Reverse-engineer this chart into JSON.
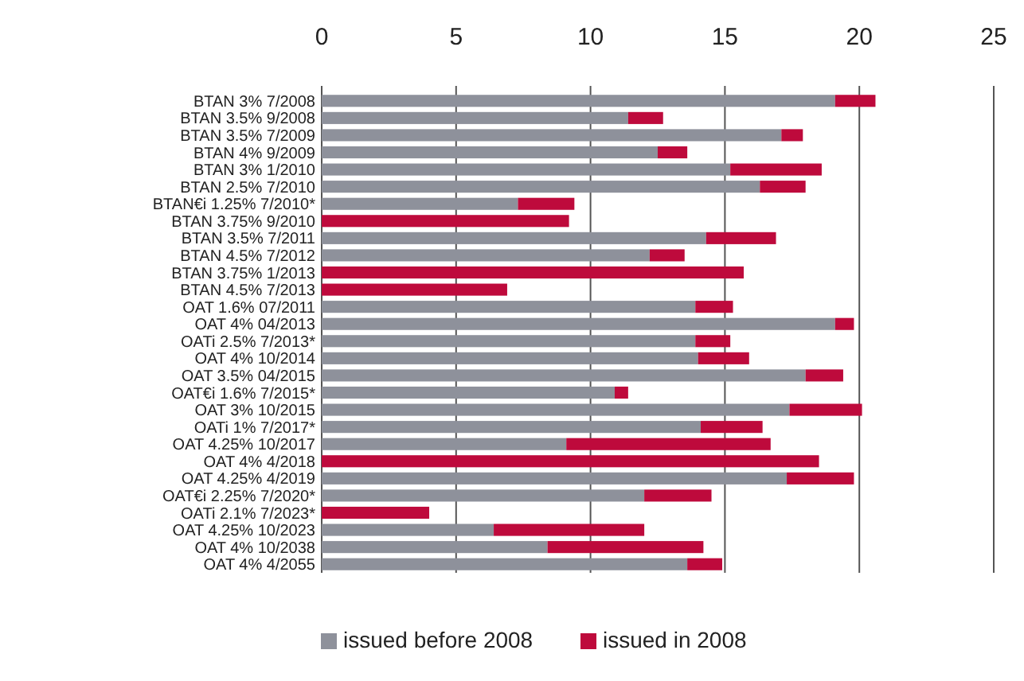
{
  "chart_data": {
    "type": "bar",
    "orientation": "horizontal",
    "stacked": true,
    "categories": [
      "BTAN 3% 7/2008",
      "BTAN 3.5% 9/2008",
      "BTAN 3.5% 7/2009",
      "BTAN 4% 9/2009",
      "BTAN 3% 1/2010",
      "BTAN 2.5% 7/2010",
      "BTAN€i 1.25% 7/2010*",
      "BTAN 3.75% 9/2010",
      "BTAN 3.5% 7/2011",
      "BTAN 4.5% 7/2012",
      "BTAN 3.75% 1/2013",
      "BTAN 4.5% 7/2013",
      "OAT 1.6% 07/2011",
      "OAT 4% 04/2013",
      "OATi 2.5% 7/2013*",
      "OAT 4% 10/2014",
      "OAT 3.5% 04/2015",
      "OAT€i 1.6% 7/2015*",
      "OAT 3% 10/2015",
      "OATi 1% 7/2017*",
      "OAT 4.25% 10/2017",
      "OAT 4% 4/2018",
      "OAT 4.25% 4/2019",
      "OAT€i 2.25% 7/2020*",
      "OATi 2.1% 7/2023*",
      "OAT 4.25% 10/2023",
      "OAT 4% 10/2038",
      "OAT 4% 4/2055"
    ],
    "series": [
      {
        "name": "issued before 2008",
        "color": "#8e919b",
        "values": [
          19.1,
          11.4,
          17.1,
          12.5,
          15.2,
          16.3,
          7.3,
          0,
          14.3,
          12.2,
          0,
          0,
          13.9,
          19.1,
          13.9,
          14.0,
          18.0,
          10.9,
          17.4,
          14.1,
          9.1,
          0,
          17.3,
          12.0,
          0,
          6.4,
          8.4,
          13.6
        ]
      },
      {
        "name": "issued in 2008",
        "color": "#be0a3c",
        "values": [
          1.5,
          1.3,
          0.8,
          1.1,
          3.4,
          1.7,
          2.1,
          9.2,
          2.6,
          1.3,
          15.7,
          6.9,
          1.4,
          0.7,
          1.3,
          1.9,
          1.4,
          0.5,
          2.7,
          2.3,
          7.6,
          18.5,
          2.5,
          2.5,
          4.0,
          5.6,
          5.8,
          1.3
        ]
      }
    ],
    "xlim": [
      0,
      25
    ],
    "xticks": [
      0,
      5,
      10,
      15,
      20,
      25
    ],
    "grid": "x",
    "legend": "bottom"
  }
}
